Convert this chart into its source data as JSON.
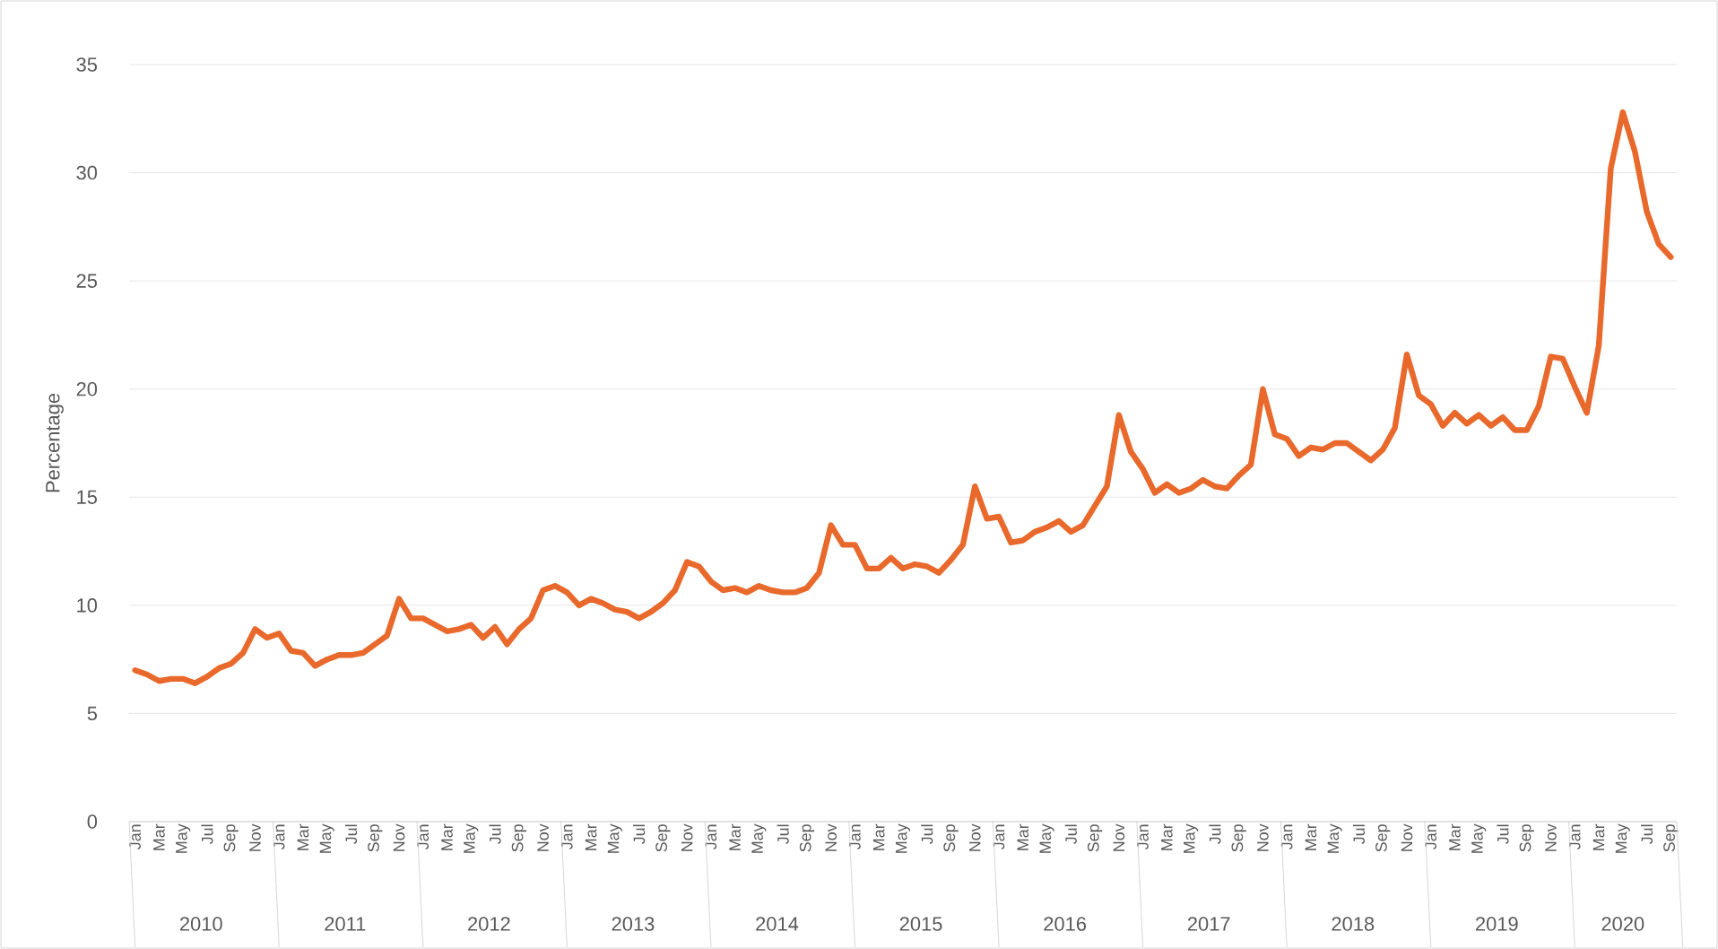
{
  "chart_data": {
    "type": "line",
    "ylabel": "Percentage",
    "categories": [
      "Jan",
      null,
      "Mar",
      null,
      "May",
      null,
      "Jul",
      null,
      "Sep",
      null,
      "Nov",
      null,
      "Jan",
      null,
      "Mar",
      null,
      "May",
      null,
      "Jul",
      null,
      "Sep",
      null,
      "Nov",
      null,
      "Jan",
      null,
      "Mar",
      null,
      "May",
      null,
      "Jul",
      null,
      "Sep",
      null,
      "Nov",
      null,
      "Jan",
      null,
      "Mar",
      null,
      "May",
      null,
      "Jul",
      null,
      "Sep",
      null,
      "Nov",
      null,
      "Jan",
      null,
      "Mar",
      null,
      "May",
      null,
      "Jul",
      null,
      "Sep",
      null,
      "Nov",
      null,
      "Jan",
      null,
      "Mar",
      null,
      "May",
      null,
      "Jul",
      null,
      "Sep",
      null,
      "Nov",
      null,
      "Jan",
      null,
      "Mar",
      null,
      "May",
      null,
      "Jul",
      null,
      "Sep",
      null,
      "Nov",
      null,
      "Jan",
      null,
      "Mar",
      null,
      "May",
      null,
      "Jul",
      null,
      "Sep",
      null,
      "Nov",
      null,
      "Jan",
      null,
      "Mar",
      null,
      "May",
      null,
      "Jul",
      null,
      "Sep",
      null,
      "Nov",
      null,
      "Jan",
      null,
      "Mar",
      null,
      "May",
      null,
      "Jul",
      null,
      "Sep",
      null,
      "Nov",
      null,
      "Jan",
      null,
      "Mar",
      null,
      "May",
      null,
      "Jul",
      null,
      "Sep"
    ],
    "series": [
      {
        "color": "#e8692b",
        "values": [
          7.0,
          6.8,
          6.5,
          6.6,
          6.6,
          6.4,
          6.7,
          7.1,
          7.3,
          7.8,
          8.9,
          8.5,
          8.7,
          7.9,
          7.8,
          7.2,
          7.5,
          7.7,
          7.7,
          7.8,
          8.2,
          8.6,
          10.3,
          9.4,
          9.4,
          9.1,
          8.8,
          8.9,
          9.1,
          8.5,
          9.0,
          8.2,
          8.9,
          9.4,
          10.7,
          10.9,
          10.6,
          10.0,
          10.3,
          10.1,
          9.8,
          9.7,
          9.4,
          9.7,
          10.1,
          10.7,
          12.0,
          11.8,
          11.1,
          10.7,
          10.8,
          10.6,
          10.9,
          10.7,
          10.6,
          10.6,
          10.8,
          11.5,
          13.7,
          12.8,
          12.8,
          11.7,
          11.7,
          12.2,
          11.7,
          11.9,
          11.8,
          11.5,
          12.1,
          12.8,
          15.5,
          14.0,
          14.1,
          12.9,
          13.0,
          13.4,
          13.6,
          13.9,
          13.4,
          13.7,
          14.6,
          15.5,
          18.8,
          17.1,
          16.3,
          15.2,
          15.6,
          15.2,
          15.4,
          15.8,
          15.5,
          15.4,
          16.0,
          16.5,
          20.0,
          17.9,
          17.7,
          16.9,
          17.3,
          17.2,
          17.5,
          17.5,
          17.1,
          16.7,
          17.2,
          18.2,
          21.6,
          19.7,
          19.3,
          18.3,
          18.9,
          18.4,
          18.8,
          18.3,
          18.7,
          18.1,
          18.1,
          19.2,
          21.5,
          21.4,
          20.1,
          18.9,
          22.0,
          30.2,
          32.8,
          31.0,
          28.2,
          26.7,
          26.1
        ]
      }
    ],
    "ylim": [
      0,
      35
    ],
    "yticks": [
      0,
      5,
      10,
      15,
      20,
      25,
      30,
      35
    ],
    "grid": "y",
    "annotations": [
      "2010",
      "2011",
      "2012",
      "2013",
      "2014",
      "2015",
      "2016",
      "2017",
      "2018",
      "2019",
      "2020"
    ]
  }
}
